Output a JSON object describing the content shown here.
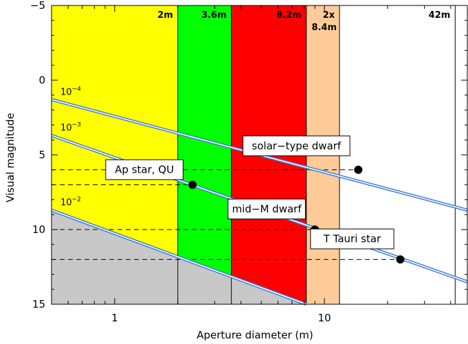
{
  "chart_data": {
    "type": "line",
    "xlabel": "Aperture diameter (m)",
    "ylabel": "Visual magnitude",
    "xscale": "log",
    "xlim": [
      0.5,
      48
    ],
    "ylim": [
      15,
      -5
    ],
    "x_ticks": [
      1,
      10
    ],
    "y_ticks": [
      -5,
      0,
      5,
      10,
      15
    ],
    "colors": {
      "yellow": "#ffff00",
      "green": "#00ff00",
      "red": "#ff0000",
      "orange": "#ffcc99",
      "white": "#ffffff",
      "gray": "#c8c8c8",
      "line": "#3a7bd5"
    },
    "bands": [
      {
        "label": "2m",
        "x_from": 0.5,
        "x_to": 2.0,
        "color": "#ffff00"
      },
      {
        "label": "3.6m",
        "x_from": 2.0,
        "x_to": 3.6,
        "color": "#00ff00"
      },
      {
        "label": "8.2m",
        "x_from": 3.6,
        "x_to": 8.2,
        "color": "#ff0000"
      },
      {
        "label": "2x",
        "label2": "8.4m",
        "x_from": 8.2,
        "x_to": 11.8,
        "color": "#ffcc99"
      },
      {
        "label": "42m",
        "x_from": 11.8,
        "x_to": 42,
        "color": "#ffffff"
      }
    ],
    "gray_region_boundary": [
      [
        0.5,
        8.7
      ],
      [
        8.2,
        15.0
      ]
    ],
    "series": [
      {
        "name": "10-4",
        "base": "10",
        "exp": "−4",
        "points": [
          [
            0.5,
            1.3
          ],
          [
            48,
            8.7
          ]
        ]
      },
      {
        "name": "10-3",
        "base": "10",
        "exp": "−3",
        "points": [
          [
            0.5,
            3.7
          ],
          [
            48,
            13.5
          ]
        ]
      },
      {
        "name": "10-2",
        "base": "10",
        "exp": "−2",
        "points": [
          [
            0.5,
            8.7
          ],
          [
            8.2,
            15.0
          ]
        ]
      }
    ],
    "annotations": [
      {
        "label": "solar−type dwarf",
        "x": 14.5,
        "y": 6.0
      },
      {
        "label": "Ap star, QU",
        "x": 2.35,
        "y": 7.0
      },
      {
        "label": "mid−M dwarf",
        "x": 9.0,
        "y": 10.0
      },
      {
        "label": "T Tauri star",
        "x": 23.0,
        "y": 12.0
      }
    ]
  }
}
